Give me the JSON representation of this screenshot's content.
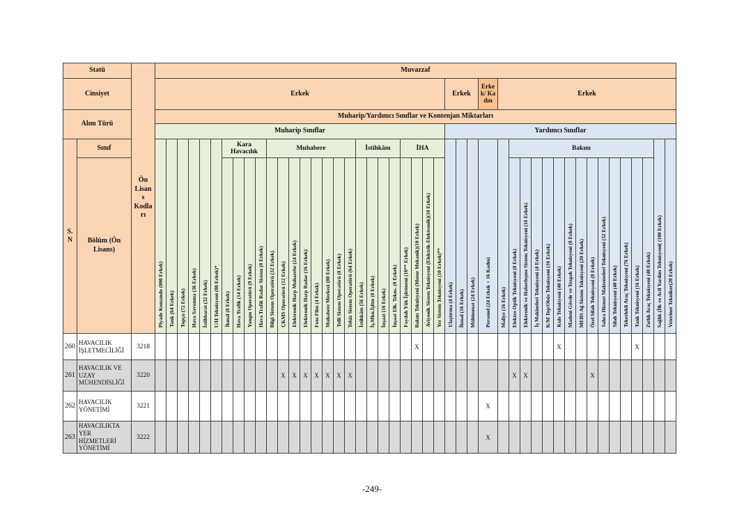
{
  "colors": {
    "header_orange": "#fcd5b4",
    "header_orange_dark": "#fbbf90",
    "muharip_green": "#e7efda",
    "yardimci_blue": "#dce6f2",
    "row_gray": "#d9d9d9",
    "border": "#404040",
    "page_bg": "#ffffff"
  },
  "footer": {
    "page_number": "-249-"
  },
  "left_header": {
    "statu": "Statü",
    "cinsiyet": "Cinsiyet",
    "alim_turu": "Alım Türü",
    "sinif": "Sınıf",
    "sn": "S. N",
    "bolum": "Bölüm (Ön Lisans)",
    "on_lisans_kodlari": "Ön Lisans Kodları"
  },
  "top_header": {
    "muvazzaf": "Muvazzaf",
    "quota_band": "Muharip/Yardımcı Sınıflar ve Kontenjan Miktarları",
    "gender_cells": [
      {
        "label": "Erkek",
        "span": 26,
        "dark": false
      },
      {
        "label": "Erkek",
        "span": 3,
        "dark": false
      },
      {
        "label": "Erkek/ Kadın",
        "span": 1,
        "dark": true
      },
      {
        "label": "Erkek",
        "span": 16,
        "dark": false
      }
    ],
    "sections": [
      {
        "label": "Muharip Sınıflar",
        "span": 26
      },
      {
        "label": "Yardımcı Sınıflar",
        "span": 20
      }
    ]
  },
  "groups": {
    "kara": "Kara Havacılık",
    "muhabere": "Muhabere",
    "istihkam": "İstihkâm",
    "iha": "İHA",
    "bakim": "Bakım"
  },
  "columns": [
    {
      "label": "Piyade Komando (800 Erkek)",
      "group": "",
      "section": "m"
    },
    {
      "label": "Tank (64 Erkek)",
      "group": "",
      "section": "m"
    },
    {
      "label": "Topçu (72 Erkek)",
      "group": "",
      "section": "m"
    },
    {
      "label": "Hava Savunma (36 Erkek)",
      "group": "",
      "section": "m"
    },
    {
      "label": "İstihbarat (32 Erkek)",
      "group": "",
      "section": "m"
    },
    {
      "label": "U/H Teknisyeni (80 Erkek)*",
      "group": "",
      "section": "m"
    },
    {
      "label": "İkmal (8 Erkek)",
      "group": "kara",
      "section": "m"
    },
    {
      "label": "Hava Trafik (14 Erkek)",
      "group": "kara",
      "section": "m"
    },
    {
      "label": "Yangın Operatörü (9 Erkek)",
      "group": "kara",
      "section": "m"
    },
    {
      "label": "Hava Trafik Radar Sistem (8 Erkek)",
      "group": "kara",
      "section": "m"
    },
    {
      "label": "Bilgi Sistem Operatörü (32 Erkek)",
      "group": "muhabere",
      "section": "m"
    },
    {
      "label": "ÇKMS Operatörü (12 Erkek)",
      "group": "muhabere",
      "section": "m"
    },
    {
      "label": "Elektronik Harp Muharebe (24 Erkek)",
      "group": "muhabere",
      "section": "m"
    },
    {
      "label": "Elektronik Harp Radar (16 Erkek)",
      "group": "muhabere",
      "section": "m"
    },
    {
      "label": "Foto Film (4 Erkek)",
      "group": "muhabere",
      "section": "m"
    },
    {
      "label": "Muhabere Merkezi (80 Erkek)",
      "group": "muhabere",
      "section": "m"
    },
    {
      "label": "Telli Sistem Operatörü (8 Erkek)",
      "group": "muhabere",
      "section": "m"
    },
    {
      "label": "Telsiz Sistem Operatörü (64 Erkek)",
      "group": "muhabere",
      "section": "m"
    },
    {
      "label": "İstihkâm (56 Erkek)",
      "group": "istihkam",
      "section": "m"
    },
    {
      "label": "İş.Mkn.İşltm (8 Erkek)",
      "group": "istihkam",
      "section": "m"
    },
    {
      "label": "İnşaat (16 Erkek)",
      "group": "istihkam",
      "section": "m"
    },
    {
      "label": "İnşaat Elk. Tekns. (8 Erkek)",
      "group": "istihkam",
      "section": "m"
    },
    {
      "label": "Faydalı Yük İşletmeni (10** Erkek)",
      "group": "iha",
      "section": "m"
    },
    {
      "label": "Bakım Teknisyeni (Motor Mekanik)(10 Erkek)",
      "group": "iha",
      "section": "m"
    },
    {
      "label": "Aviyonik Sistem Teknisyeni (Elektrik-Elektronik)(10 Erkek)",
      "group": "iha",
      "section": "m"
    },
    {
      "label": "Yer Sistem Teknisyeni (10 Erkek)**",
      "group": "iha",
      "section": "m"
    },
    {
      "label": "Ulaştırma (4 Erkek)",
      "group": "",
      "section": "y"
    },
    {
      "label": "İkmal (16 Erkek)",
      "group": "",
      "section": "y"
    },
    {
      "label": "Mühimmat (24 Erkek)",
      "group": "",
      "section": "y"
    },
    {
      "label": "Personel (24 Erkek + 16 Kadın)",
      "group": "",
      "section": "y",
      "wide": true
    },
    {
      "label": "Maliye (16 Erkek)",
      "group": "",
      "section": "y"
    },
    {
      "label": "Elektro Optik Teknisyeni (8 Erkek)",
      "group": "bakim",
      "section": "y"
    },
    {
      "label": "Elektronik ve Haberleşme Sistem Teknisyeni (16 Erkek)",
      "group": "bakim",
      "section": "y"
    },
    {
      "label": "İş Makineleri Teknisyeni (4 Erkek)",
      "group": "bakim",
      "section": "y"
    },
    {
      "label": "K/M Top/Obüs Teknisyeni (16 Erkek)",
      "group": "bakim",
      "section": "y"
    },
    {
      "label": "Kule Teknisyeni (40 Erkek)",
      "group": "bakim",
      "section": "y"
    },
    {
      "label": "Madeni Gövde ve Tezgah Teknisyeni (8 Erkek)",
      "group": "bakim",
      "section": "y"
    },
    {
      "label": "MEBS Ağ Sistem Teknisyeni (20 Erkek)",
      "group": "bakim",
      "section": "y"
    },
    {
      "label": "Özel Silah Teknisyeni (8 Erkek)",
      "group": "bakim",
      "section": "y"
    },
    {
      "label": "Sahra Hizmet Malzemeleri Teknisyeni (32 Erkek)",
      "group": "bakim",
      "section": "y"
    },
    {
      "label": "Silah Teknisyeni (40 Erkek)",
      "group": "bakim",
      "section": "y"
    },
    {
      "label": "Tekerlekli Araç Teknisyeni (76 Erkek)",
      "group": "bakim",
      "section": "y"
    },
    {
      "label": "Tank Teknisyeni (16 Erkek)",
      "group": "bakim",
      "section": "y"
    },
    {
      "label": "Zırhlı Araç Teknisyeni (40 Erkek)",
      "group": "bakim",
      "section": "y"
    },
    {
      "label": "Sağlık (İlk ve Acil Yardım Teknisyeni( (100 Erkek)",
      "group": "",
      "section": "y"
    },
    {
      "label": "Veteriner Tekniker(20 Erkek)",
      "group": "",
      "section": "y"
    }
  ],
  "mark": "X",
  "rows": [
    {
      "sn": "260",
      "bolum": "HAVACILIK İŞLETMECİLİĞİ",
      "kod": "3218",
      "shaded": false,
      "marks": [
        24,
        36,
        43
      ]
    },
    {
      "sn": "261",
      "bolum": "HAVACILIK VE UZAY MÜHENDİSLİĞİ",
      "kod": "3220",
      "shaded": true,
      "marks": [
        12,
        13,
        14,
        15,
        16,
        17,
        18,
        32,
        33,
        39
      ]
    },
    {
      "sn": "262",
      "bolum": "HAVACILIK YÖNETİMİ",
      "kod": "3221",
      "shaded": false,
      "marks": [
        30
      ]
    },
    {
      "sn": "263",
      "bolum": "HAVACILIKTA YER HİZMETLERİ YÖNETİMİ",
      "kod": "3222",
      "shaded": true,
      "marks": [
        30
      ]
    }
  ]
}
